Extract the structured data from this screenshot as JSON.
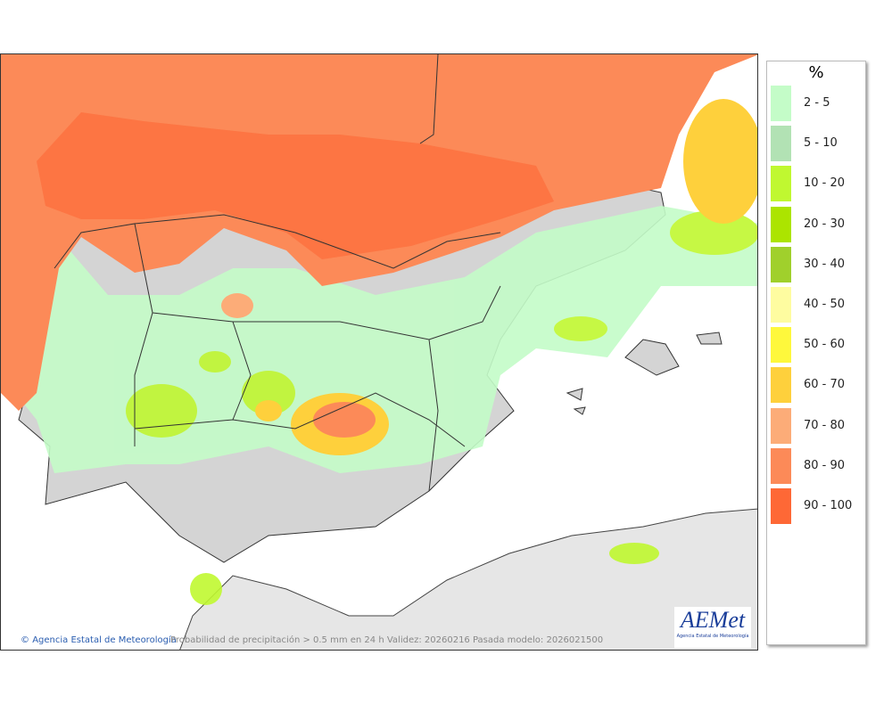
{
  "map": {
    "credit": "Agencia Estatal de Meteorología",
    "caption": "Probabilidad de precipitación > 0.5 mm en 24 h Validez: 20260216 Pasada modelo: 2026021500",
    "logo_text": "AEMet",
    "logo_subtext": "Agencia Estatal de Meteorología"
  },
  "legend": {
    "title": "%",
    "items": [
      {
        "label": "2 - 5",
        "color": "#c4fcc8"
      },
      {
        "label": "5 - 10",
        "color": "#b2e2b4"
      },
      {
        "label": "10 - 20",
        "color": "#c0f830"
      },
      {
        "label": "20 - 30",
        "color": "#ace400"
      },
      {
        "label": "30 - 40",
        "color": "#a0d02c"
      },
      {
        "label": "40 - 50",
        "color": "#fefca0"
      },
      {
        "label": "50 - 60",
        "color": "#fef83c"
      },
      {
        "label": "60 - 70",
        "color": "#fed03c"
      },
      {
        "label": "70 - 80",
        "color": "#fcac78"
      },
      {
        "label": "80 - 90",
        "color": "#fc8a58"
      },
      {
        "label": "90 - 100",
        "color": "#fe6836"
      }
    ]
  }
}
